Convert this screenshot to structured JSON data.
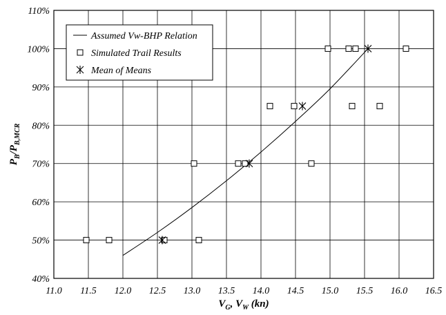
{
  "chart_data": {
    "type": "scatter",
    "xlabel": "V",
    "xlabel_sub1": "G",
    "xlabel_mid": ", V",
    "xlabel_sub2": "W",
    "xlabel_unit": " (kn)",
    "ylabel": "P",
    "ylabel_sub1": "B",
    "ylabel_mid": "/P",
    "ylabel_sub2": "B,MCR",
    "xlim": [
      11.0,
      16.5
    ],
    "ylim": [
      40,
      110
    ],
    "x_ticks": [
      "11.0",
      "11.5",
      "12.0",
      "12.5",
      "13.0",
      "13.5",
      "14.0",
      "14.5",
      "15.0",
      "15.5",
      "16.0",
      "16.5"
    ],
    "y_ticks": [
      "40%",
      "50%",
      "60%",
      "70%",
      "80%",
      "90%",
      "100%",
      "110%"
    ],
    "grid": true,
    "legend_position": "top-left",
    "series": [
      {
        "name": "Assumed Vw-BHP Relation",
        "kind": "line",
        "x": [
          12.0,
          12.5,
          13.0,
          13.5,
          14.0,
          14.5,
          15.0,
          15.55
        ],
        "y": [
          46.0,
          52.0,
          58.5,
          65.5,
          73.0,
          81.0,
          89.5,
          100.0
        ]
      },
      {
        "name": "Simulated Trail Results",
        "kind": "square",
        "x": [
          11.47,
          11.8,
          12.6,
          13.1,
          13.03,
          13.67,
          13.77,
          14.73,
          14.13,
          14.48,
          15.32,
          15.72,
          14.97,
          15.27,
          15.37,
          16.1
        ],
        "y": [
          50,
          50,
          50,
          50,
          70,
          70,
          70,
          70,
          85,
          85,
          85,
          85,
          100,
          100,
          100,
          100
        ]
      },
      {
        "name": "Mean of Means",
        "kind": "star",
        "x": [
          12.57,
          13.83,
          14.6,
          15.55
        ],
        "y": [
          50,
          70,
          85,
          100
        ]
      }
    ]
  }
}
